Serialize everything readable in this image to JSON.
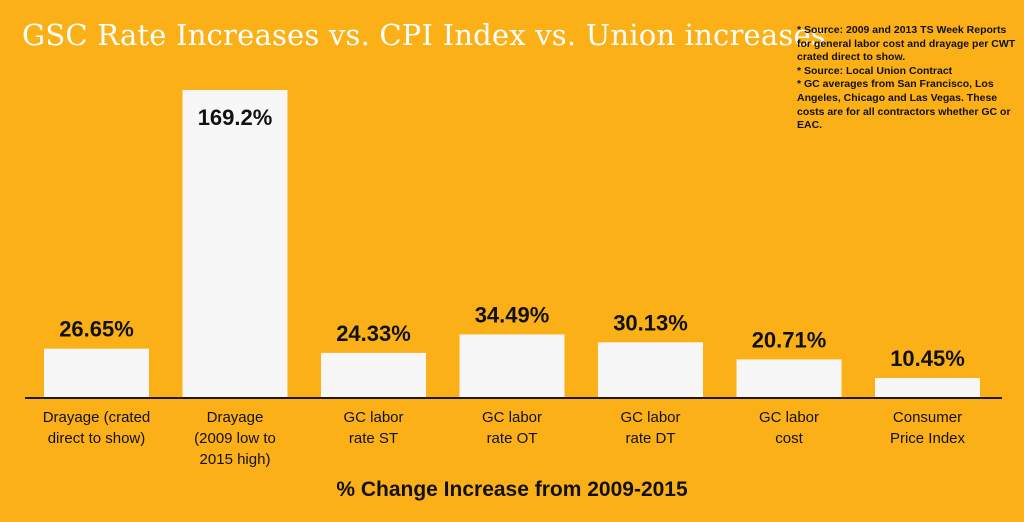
{
  "title": "GSC Rate Increases vs. CPI Index vs. Union increases",
  "notes": [
    "* Source: 2009 and 2013 TS Week Reports for general labor cost and drayage per CWT crated direct to show.",
    "* Source: Local Union Contract",
    "* GC averages from San Francisco, Los Angeles, Chicago and Las Vegas. These costs are for all contractors whether GC or EAC."
  ],
  "colors": {
    "background": "#FBB017",
    "bar": "#F7F7F7",
    "text": "#111111",
    "title": "#ffffff"
  },
  "chart_data": {
    "type": "bar",
    "title": "GSC Rate Increases vs. CPI Index vs. Union increases",
    "xlabel": "% Change Increase from 2009-2015",
    "ylabel": "",
    "ylim": [
      0,
      180
    ],
    "grid": false,
    "categories": [
      [
        "Drayage (crated",
        "direct to show)"
      ],
      [
        "Drayage",
        "(2009 low to",
        "2015 high)"
      ],
      [
        "GC labor",
        "rate ST"
      ],
      [
        "GC labor",
        "rate OT"
      ],
      [
        "GC labor",
        "rate DT"
      ],
      [
        "GC labor",
        "cost"
      ],
      [
        "Consumer",
        "Price Index"
      ]
    ],
    "values": [
      26.65,
      169.2,
      24.33,
      34.49,
      30.13,
      20.71,
      10.45
    ],
    "value_labels": [
      "26.65%",
      "169.2%",
      "24.33%",
      "34.49%",
      "30.13%",
      "20.71%",
      "10.45%"
    ],
    "label_inside": [
      false,
      true,
      false,
      false,
      false,
      false,
      false
    ]
  }
}
